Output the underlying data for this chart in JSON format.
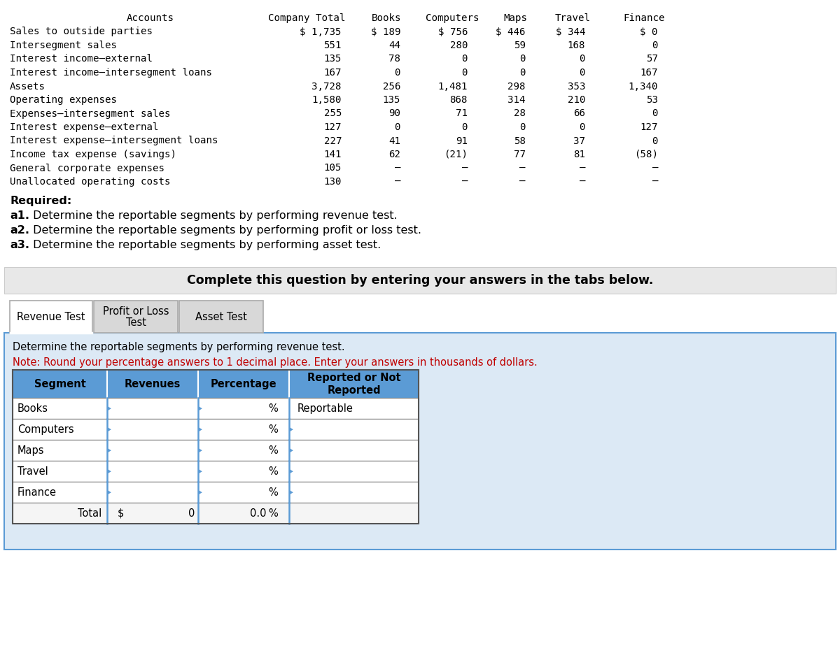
{
  "accounts": [
    "Sales to outside parties",
    "Intersegment sales",
    "Interest income–external",
    "Interest income–intersegment loans",
    "Assets",
    "Operating expenses",
    "Expenses–intersegment sales",
    "Interest expense–external",
    "Interest expense–intersegment loans",
    "Income tax expense (savings)",
    "General corporate expenses",
    "Unallocated operating costs"
  ],
  "company_total": [
    "$ 1,735",
    "551",
    "135",
    "167",
    "3,728",
    "1,580",
    "255",
    "127",
    "227",
    "141",
    "105",
    "130"
  ],
  "books": [
    "$ 189",
    "44",
    "78",
    "0",
    "256",
    "135",
    "90",
    "0",
    "41",
    "62",
    "–",
    "–"
  ],
  "computers": [
    "$ 756",
    "280",
    "0",
    "0",
    "1,481",
    "868",
    "71",
    "0",
    "91",
    "(21)",
    "–",
    "–"
  ],
  "maps": [
    "$ 446",
    "59",
    "0",
    "0",
    "298",
    "314",
    "28",
    "0",
    "58",
    "77",
    "–",
    "–"
  ],
  "travel": [
    "$ 344",
    "168",
    "0",
    "0",
    "353",
    "210",
    "66",
    "0",
    "37",
    "81",
    "–",
    "–"
  ],
  "finance": [
    "$ 0",
    "0",
    "57",
    "167",
    "1,340",
    "53",
    "0",
    "127",
    "0",
    "(58)",
    "–",
    "–"
  ],
  "complete_text": "Complete this question by entering your answers in the tabs below.",
  "tabs": [
    "Revenue Test",
    "Profit or Loss\nTest",
    "Asset Test"
  ],
  "instruction_line1": "Determine the reportable segments by performing revenue test.",
  "instruction_line2": "Note: Round your percentage answers to 1 decimal place. Enter your answers in thousands of dollars.",
  "table_headers": [
    "Segment",
    "Revenues",
    "Percentage",
    "Reported or Not\nReported"
  ],
  "table_rows": [
    [
      "Books",
      "",
      "",
      "%",
      "Reportable"
    ],
    [
      "Computers",
      "",
      "",
      "%",
      ""
    ],
    [
      "Maps",
      "",
      "",
      "%",
      ""
    ],
    [
      "Travel",
      "",
      "",
      "%",
      ""
    ],
    [
      "Finance",
      "",
      "",
      "%",
      ""
    ],
    [
      "Total",
      "$",
      "0",
      "0.0",
      "%",
      ""
    ]
  ],
  "header_bg": "#5b9bd5",
  "tab_active_bg": "#ffffff",
  "tab_inactive_bg": "#d8d8d8",
  "instruction_bg": "#dce9f5",
  "note_color": "#c00000",
  "body_bg": "#ffffff",
  "total_bg": "#f5f5f5",
  "border_color": "#5b9bd5",
  "tab_border_color": "#aaaaaa",
  "font_mono": "DejaVu Sans Mono",
  "font_sans": "DejaVu Sans"
}
